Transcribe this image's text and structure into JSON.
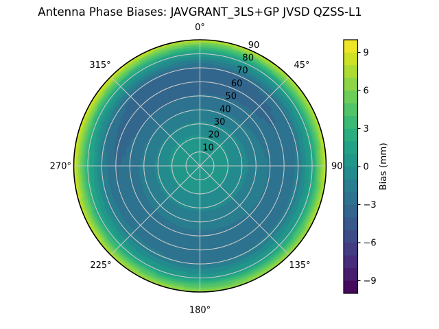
{
  "figure": {
    "background": "#ffffff",
    "outline_color": "#000000",
    "text_color": "#000000"
  },
  "chart_data": {
    "type": "heatmap",
    "projection": "polar",
    "title": "Antenna Phase Biases: JAVGRANT_3LS+GP JVSD QZSS-L1",
    "values_unit": "mm",
    "theta_zero_location": "N",
    "theta_direction": "clockwise",
    "azimuth_deg": [
      0,
      45,
      90,
      135,
      180,
      225,
      270,
      315
    ],
    "radius_deg": [
      0,
      10,
      20,
      30,
      40,
      50,
      60,
      70,
      80,
      90
    ],
    "bias_mm": [
      [
        0.5,
        0.7,
        0.2,
        -0.8,
        -1.9,
        -2.9,
        -3.7,
        -3.3,
        0.6,
        7.8
      ],
      [
        0.5,
        0.7,
        0.2,
        -0.7,
        -1.7,
        -2.7,
        -3.4,
        -2.8,
        1.0,
        8.0
      ],
      [
        0.5,
        0.6,
        0.1,
        -0.7,
        -1.4,
        -2.1,
        -2.6,
        -1.8,
        1.6,
        8.4
      ],
      [
        0.5,
        0.5,
        0.0,
        -0.8,
        -1.5,
        -2.1,
        -2.5,
        -1.9,
        1.1,
        7.3
      ],
      [
        0.5,
        0.5,
        0.0,
        -0.8,
        -1.6,
        -2.3,
        -2.7,
        -2.1,
        0.8,
        7.0
      ],
      [
        0.5,
        0.6,
        0.1,
        -0.8,
        -1.6,
        -2.4,
        -2.7,
        -1.6,
        1.6,
        7.9
      ],
      [
        0.5,
        0.7,
        0.2,
        -0.8,
        -1.7,
        -2.7,
        -3.1,
        -1.2,
        2.6,
        9.2
      ],
      [
        0.5,
        0.8,
        0.3,
        -0.9,
        -2.0,
        -3.1,
        -4.0,
        -3.0,
        1.4,
        9.0
      ]
    ],
    "contour_levels": {
      "min": -10,
      "max": 10,
      "step": 1
    },
    "angular_tick_labels": [
      "0°",
      "45°",
      "90",
      "135°",
      "180°",
      "225°",
      "270°",
      "315°"
    ],
    "radial_tick_labels": [
      "10",
      "20",
      "30",
      "40",
      "50",
      "60",
      "70",
      "80",
      "90"
    ],
    "radial_label_azimuth_deg": 24,
    "grid": {
      "color": "#c8c8c8",
      "circle_radii_deg": [
        10,
        20,
        30,
        40,
        50,
        60,
        70,
        80
      ],
      "spoke_interval_deg": 45
    },
    "colorbar": {
      "label": "Bias (mm)",
      "range": [
        -10,
        10
      ],
      "tick_values": [
        9,
        6,
        3,
        0,
        -3,
        -6,
        -9
      ],
      "tick_labels": [
        "9",
        "6",
        "3",
        "0",
        "−3",
        "−6",
        "−9"
      ]
    },
    "colormap": {
      "name": "viridis",
      "anchors": [
        "#440154",
        "#482475",
        "#414487",
        "#35608d",
        "#2a788e",
        "#21918c",
        "#22a884",
        "#44bf70",
        "#7ad151",
        "#bddf26",
        "#fde725"
      ]
    }
  }
}
